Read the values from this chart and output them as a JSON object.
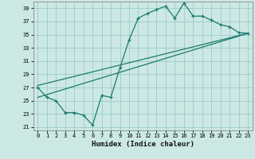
{
  "xlabel": "Humidex (Indice chaleur)",
  "ylabel": "",
  "bg_color": "#cce8e4",
  "grid_color": "#99cccc",
  "line_color": "#1a7a6e",
  "xlim": [
    -0.5,
    23.5
  ],
  "ylim": [
    20.5,
    40.0
  ],
  "yticks": [
    21,
    23,
    25,
    27,
    29,
    31,
    33,
    35,
    37,
    39
  ],
  "xticks": [
    0,
    1,
    2,
    3,
    4,
    5,
    6,
    7,
    8,
    9,
    10,
    11,
    12,
    13,
    14,
    15,
    16,
    17,
    18,
    19,
    20,
    21,
    22,
    23
  ],
  "line1_x": [
    0,
    1,
    2,
    3,
    4,
    5,
    6,
    7,
    8,
    9,
    10,
    11,
    12,
    13,
    14,
    15,
    16,
    17,
    18,
    19,
    20,
    21,
    22,
    23
  ],
  "line1_y": [
    27.0,
    25.5,
    25.0,
    23.2,
    23.2,
    22.8,
    21.3,
    25.8,
    25.5,
    30.0,
    34.2,
    37.5,
    38.2,
    38.8,
    39.3,
    37.5,
    39.8,
    37.8,
    37.8,
    37.2,
    36.5,
    36.2,
    35.3,
    35.2
  ],
  "line2_x": [
    0,
    23
  ],
  "line2_y": [
    25.5,
    35.2
  ],
  "line3_x": [
    0,
    23
  ],
  "line3_y": [
    27.3,
    35.2
  ]
}
